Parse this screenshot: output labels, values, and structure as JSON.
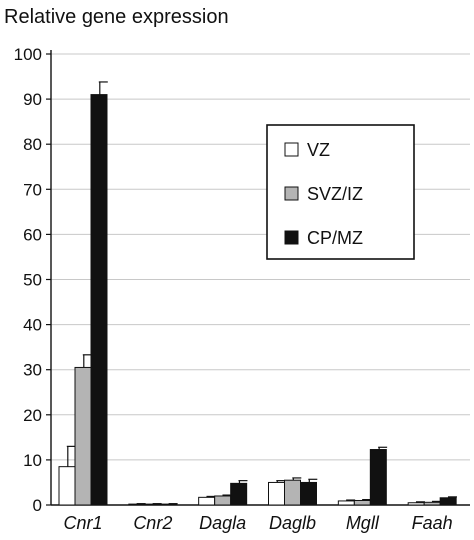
{
  "chart_data": {
    "type": "bar",
    "title": "Relative gene expression",
    "xlabel": "",
    "ylabel": "",
    "ylim": [
      0,
      100
    ],
    "yticks": [
      0,
      10,
      20,
      30,
      40,
      50,
      60,
      70,
      80,
      90,
      100
    ],
    "grid": true,
    "legend_position": "right",
    "categories": [
      "Cnr1",
      "Cnr2",
      "Dagla",
      "Daglb",
      "Mgll",
      "Faah"
    ],
    "series": [
      {
        "name": "VZ",
        "color": "#ffffff",
        "values": [
          8.5,
          0.2,
          1.7,
          5.0,
          0.9,
          0.5
        ],
        "errors": [
          4.5,
          0.1,
          0.2,
          0.4,
          0.2,
          0.2
        ]
      },
      {
        "name": "SVZ/IZ",
        "color": "#b4b4b4",
        "values": [
          30.5,
          0.2,
          2.0,
          5.5,
          1.0,
          0.6
        ],
        "errors": [
          2.8,
          0.1,
          0.2,
          0.5,
          0.2,
          0.2
        ]
      },
      {
        "name": "CP/MZ",
        "color": "#111111",
        "values": [
          91.0,
          0.2,
          4.8,
          5.0,
          12.3,
          1.6
        ],
        "errors": [
          2.8,
          0.1,
          0.6,
          0.7,
          0.5,
          0.2
        ]
      }
    ]
  }
}
